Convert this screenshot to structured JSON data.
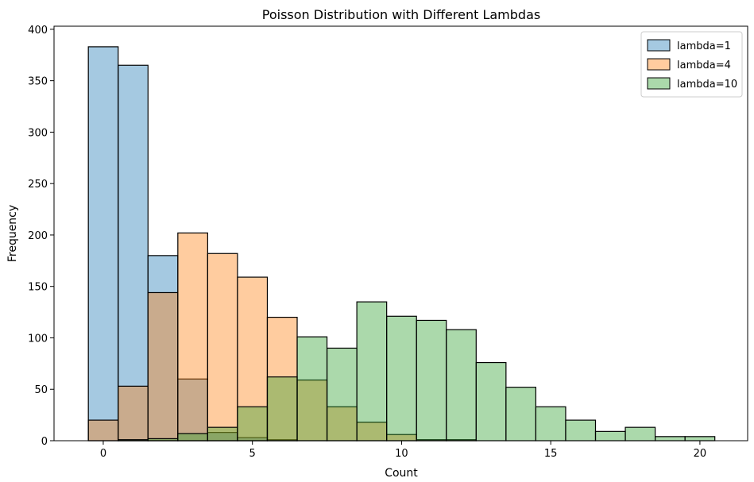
{
  "chart_data": {
    "type": "bar",
    "title": "Poisson Distribution with Different Lambdas",
    "xlabel": "Count",
    "ylabel": "Frequency",
    "xlim": [
      -1.65,
      21.6
    ],
    "ylim": [
      0,
      403
    ],
    "xticks": [
      0,
      5,
      10,
      15,
      20
    ],
    "yticks": [
      0,
      50,
      100,
      150,
      200,
      250,
      300,
      350,
      400
    ],
    "bins": [
      0,
      1,
      2,
      3,
      4,
      5,
      6,
      7,
      8,
      9,
      10,
      11,
      12,
      13,
      14,
      15,
      16,
      17,
      18,
      19,
      20
    ],
    "bin_width": 1,
    "legend_position": "top-right",
    "series": [
      {
        "name": "lambda=1",
        "color": "#1f77b4",
        "values": [
          383,
          365,
          180,
          60,
          8,
          3,
          1,
          0,
          0,
          0,
          0,
          0,
          0,
          0,
          0,
          0,
          0,
          0,
          0,
          0,
          0
        ]
      },
      {
        "name": "lambda=4",
        "color": "#ff7f0e",
        "values": [
          20,
          53,
          144,
          202,
          182,
          159,
          120,
          59,
          33,
          18,
          6,
          1,
          1,
          0,
          0,
          0,
          0,
          0,
          0,
          0,
          0
        ]
      },
      {
        "name": "lambda=10",
        "color": "#2ca02c",
        "values": [
          0,
          1,
          2,
          7,
          13,
          33,
          62,
          101,
          90,
          135,
          121,
          117,
          108,
          76,
          52,
          33,
          20,
          9,
          13,
          4,
          4
        ]
      }
    ]
  }
}
